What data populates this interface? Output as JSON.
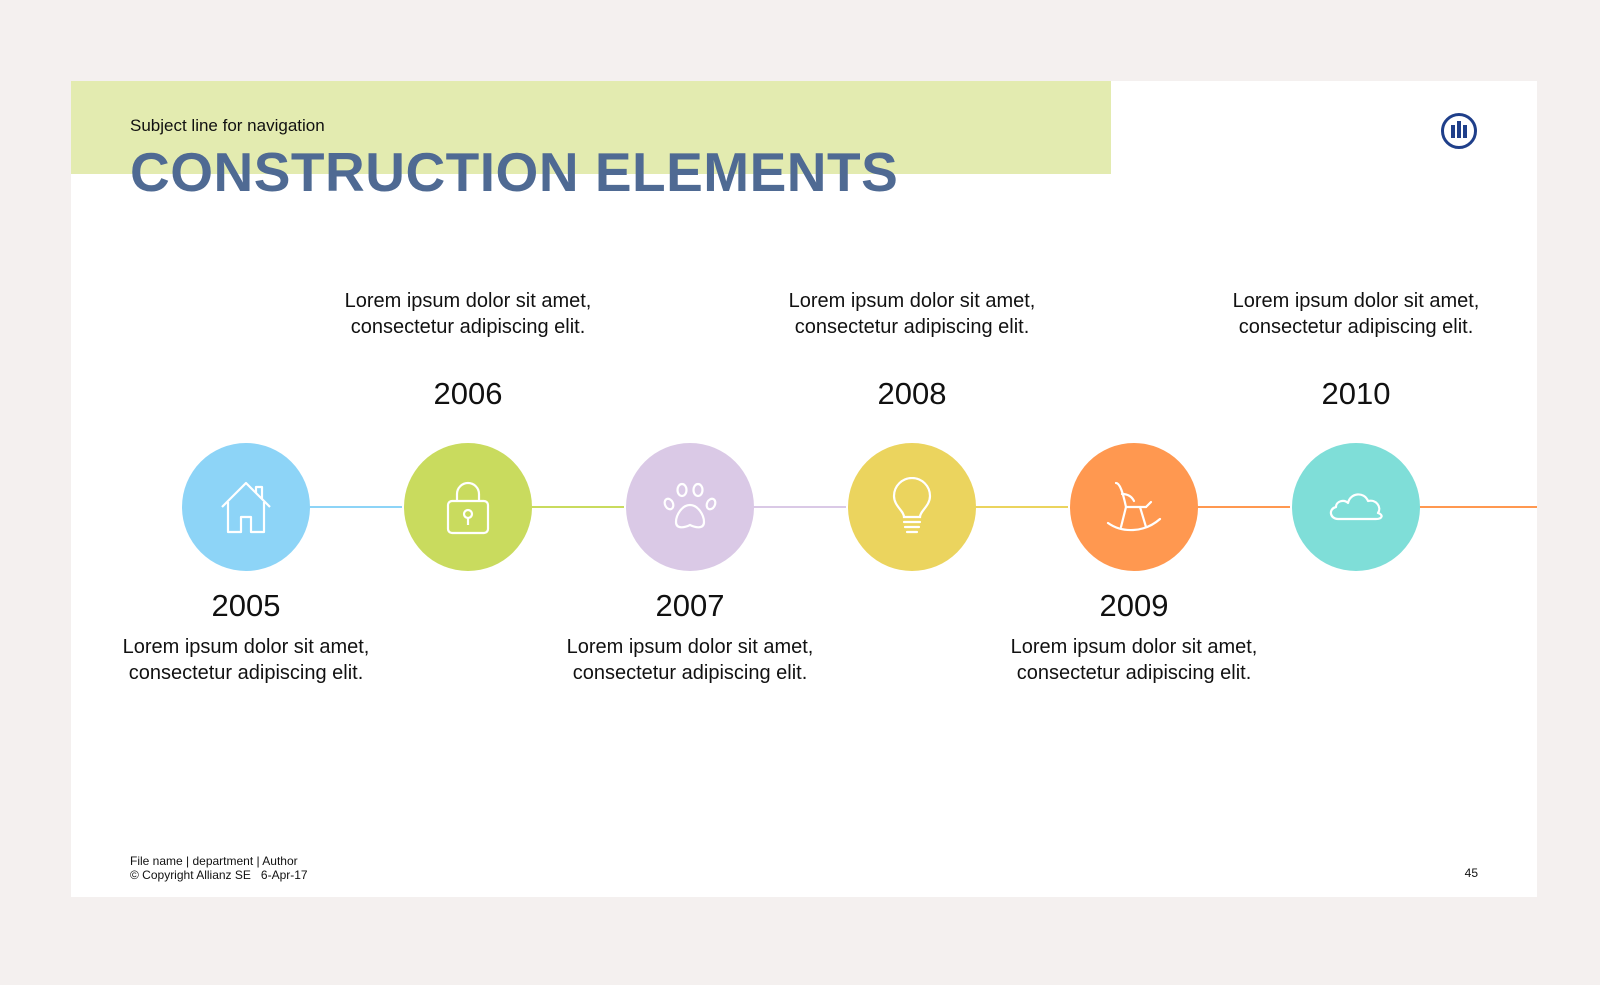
{
  "header": {
    "subject": "Subject line for navigation",
    "title": "CONSTRUCTION ELEMENTS"
  },
  "timeline": [
    {
      "year": "2005",
      "text": "Lorem ipsum dolor sit amet, consectetur adipiscing elit.",
      "color": "#8dd4f7",
      "icon": "house-icon"
    },
    {
      "year": "2006",
      "text": "Lorem ipsum dolor sit amet, consectetur adipiscing elit.",
      "color": "#c9db5e",
      "icon": "lock-icon"
    },
    {
      "year": "2007",
      "text": "Lorem ipsum dolor sit amet, consectetur adipiscing elit.",
      "color": "#dac9e6",
      "icon": "paw-icon"
    },
    {
      "year": "2008",
      "text": "Lorem ipsum dolor sit amet, consectetur adipiscing elit.",
      "color": "#ebd45e",
      "icon": "lightbulb-icon"
    },
    {
      "year": "2009",
      "text": "Lorem ipsum dolor sit amet, consectetur adipiscing elit.",
      "color": "#ff9850",
      "icon": "rocking-chair-icon"
    },
    {
      "year": "2010",
      "text": "Lorem ipsum dolor sit amet, consectetur adipiscing elit.",
      "color": "#7fded8",
      "icon": "cloud-icon"
    }
  ],
  "footer": {
    "line1": "File name | department | Author",
    "line2": "© Copyright Allianz SE   6-Apr-17",
    "page": "45"
  },
  "colors": {
    "title": "#4f6a93",
    "band": "#e3ebb0",
    "logo": "#1f3f8a"
  }
}
